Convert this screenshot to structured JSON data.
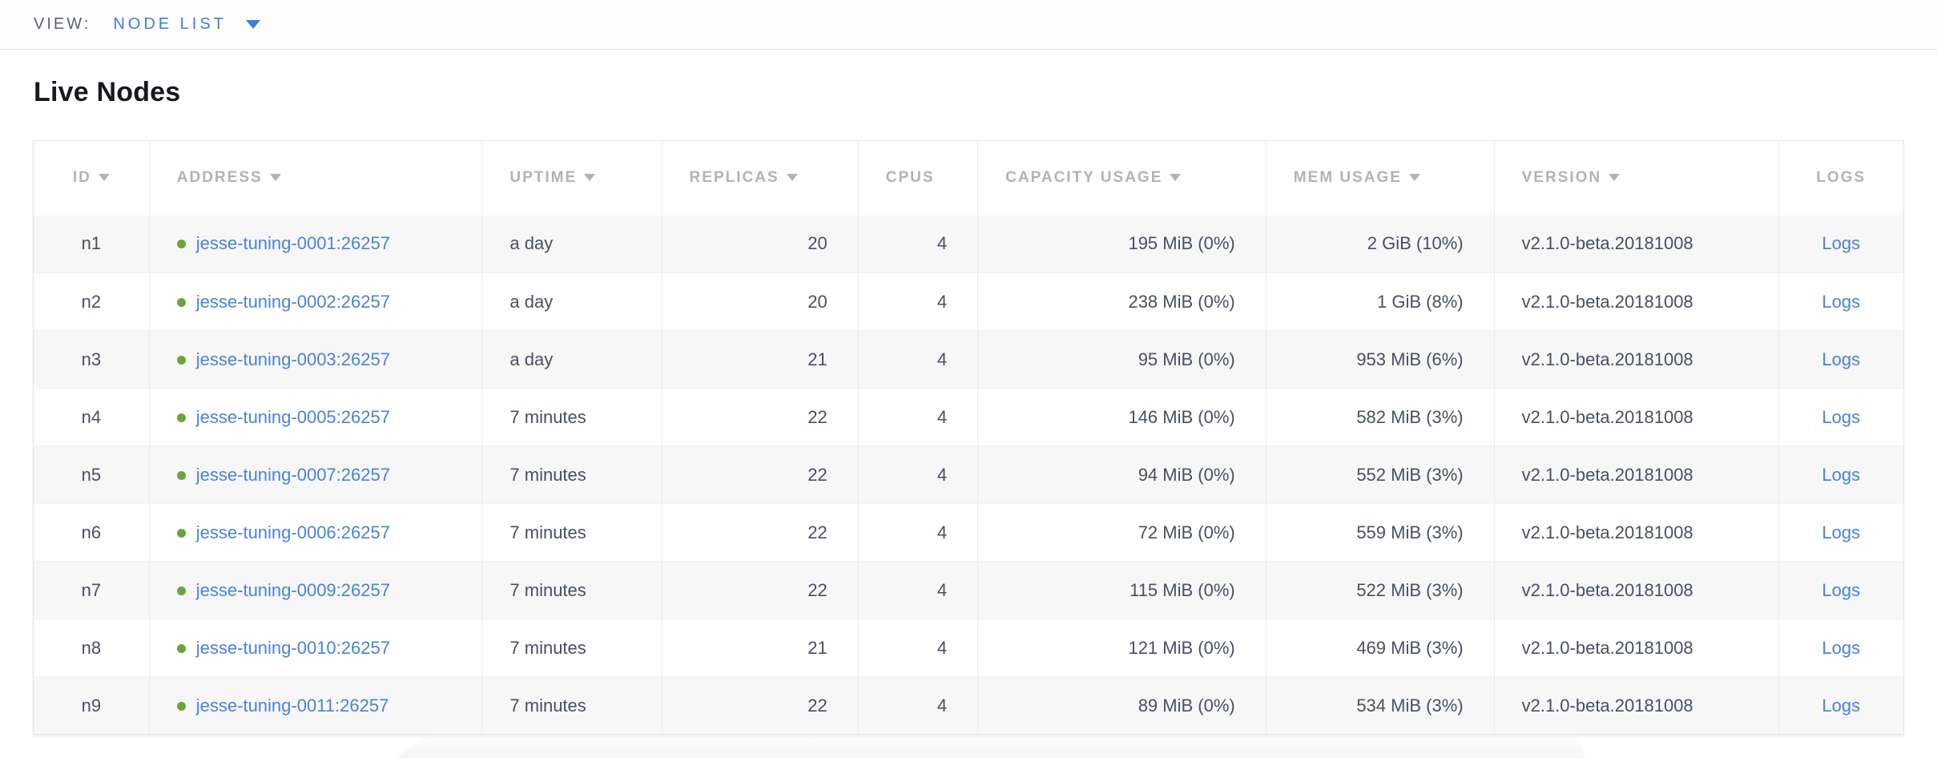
{
  "view_bar": {
    "label": "VIEW:",
    "selected_view": "NODE LIST"
  },
  "page": {
    "title": "Live Nodes"
  },
  "colors": {
    "accent_blue": "#3e7de0",
    "link_blue": "#4a82d8",
    "status_live_green": "#6da33c"
  },
  "table": {
    "columns": [
      {
        "key": "id",
        "label": "ID",
        "sortable": true
      },
      {
        "key": "address",
        "label": "ADDRESS",
        "sortable": true
      },
      {
        "key": "uptime",
        "label": "UPTIME",
        "sortable": true
      },
      {
        "key": "replicas",
        "label": "REPLICAS",
        "sortable": true
      },
      {
        "key": "cpus",
        "label": "CPUS",
        "sortable": false
      },
      {
        "key": "capacity_usage",
        "label": "CAPACITY USAGE",
        "sortable": true
      },
      {
        "key": "mem_usage",
        "label": "MEM USAGE",
        "sortable": true
      },
      {
        "key": "version",
        "label": "VERSION",
        "sortable": true
      },
      {
        "key": "logs",
        "label": "LOGS",
        "sortable": false
      }
    ],
    "rows": [
      {
        "id": "n1",
        "status": "live",
        "address": "jesse-tuning-0001:26257",
        "uptime": "a day",
        "replicas": "20",
        "cpus": "4",
        "capacity_usage": "195 MiB (0%)",
        "mem_usage": "2 GiB (10%)",
        "version": "v2.1.0-beta.20181008",
        "logs_label": "Logs"
      },
      {
        "id": "n2",
        "status": "live",
        "address": "jesse-tuning-0002:26257",
        "uptime": "a day",
        "replicas": "20",
        "cpus": "4",
        "capacity_usage": "238 MiB (0%)",
        "mem_usage": "1 GiB (8%)",
        "version": "v2.1.0-beta.20181008",
        "logs_label": "Logs"
      },
      {
        "id": "n3",
        "status": "live",
        "address": "jesse-tuning-0003:26257",
        "uptime": "a day",
        "replicas": "21",
        "cpus": "4",
        "capacity_usage": "95 MiB (0%)",
        "mem_usage": "953 MiB (6%)",
        "version": "v2.1.0-beta.20181008",
        "logs_label": "Logs"
      },
      {
        "id": "n4",
        "status": "live",
        "address": "jesse-tuning-0005:26257",
        "uptime": "7 minutes",
        "replicas": "22",
        "cpus": "4",
        "capacity_usage": "146 MiB (0%)",
        "mem_usage": "582 MiB (3%)",
        "version": "v2.1.0-beta.20181008",
        "logs_label": "Logs"
      },
      {
        "id": "n5",
        "status": "live",
        "address": "jesse-tuning-0007:26257",
        "uptime": "7 minutes",
        "replicas": "22",
        "cpus": "4",
        "capacity_usage": "94 MiB (0%)",
        "mem_usage": "552 MiB (3%)",
        "version": "v2.1.0-beta.20181008",
        "logs_label": "Logs"
      },
      {
        "id": "n6",
        "status": "live",
        "address": "jesse-tuning-0006:26257",
        "uptime": "7 minutes",
        "replicas": "22",
        "cpus": "4",
        "capacity_usage": "72 MiB (0%)",
        "mem_usage": "559 MiB (3%)",
        "version": "v2.1.0-beta.20181008",
        "logs_label": "Logs"
      },
      {
        "id": "n7",
        "status": "live",
        "address": "jesse-tuning-0009:26257",
        "uptime": "7 minutes",
        "replicas": "22",
        "cpus": "4",
        "capacity_usage": "115 MiB (0%)",
        "mem_usage": "522 MiB (3%)",
        "version": "v2.1.0-beta.20181008",
        "logs_label": "Logs"
      },
      {
        "id": "n8",
        "status": "live",
        "address": "jesse-tuning-0010:26257",
        "uptime": "7 minutes",
        "replicas": "21",
        "cpus": "4",
        "capacity_usage": "121 MiB (0%)",
        "mem_usage": "469 MiB (3%)",
        "version": "v2.1.0-beta.20181008",
        "logs_label": "Logs"
      },
      {
        "id": "n9",
        "status": "live",
        "address": "jesse-tuning-0011:26257",
        "uptime": "7 minutes",
        "replicas": "22",
        "cpus": "4",
        "capacity_usage": "89 MiB (0%)",
        "mem_usage": "534 MiB (3%)",
        "version": "v2.1.0-beta.20181008",
        "logs_label": "Logs"
      }
    ]
  }
}
